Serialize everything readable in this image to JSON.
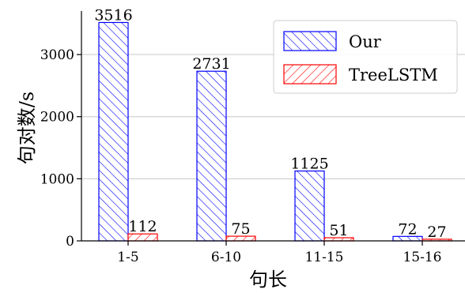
{
  "chart_data": {
    "type": "bar",
    "categories": [
      "1-5",
      "6-10",
      "11-15",
      "15-16"
    ],
    "series": [
      {
        "name": "Our",
        "values": [
          3516,
          2731,
          1125,
          72
        ],
        "color": "#0000ff"
      },
      {
        "name": "TreeLSTM",
        "values": [
          112,
          75,
          51,
          27
        ],
        "color": "#ff0000"
      }
    ],
    "xlabel": "句长",
    "ylabel": "句对数/s",
    "ylim": [
      0,
      3700
    ],
    "yticks": [
      0,
      1000,
      2000,
      3000
    ],
    "grid": "horizontal",
    "legend_position": "top-right"
  }
}
